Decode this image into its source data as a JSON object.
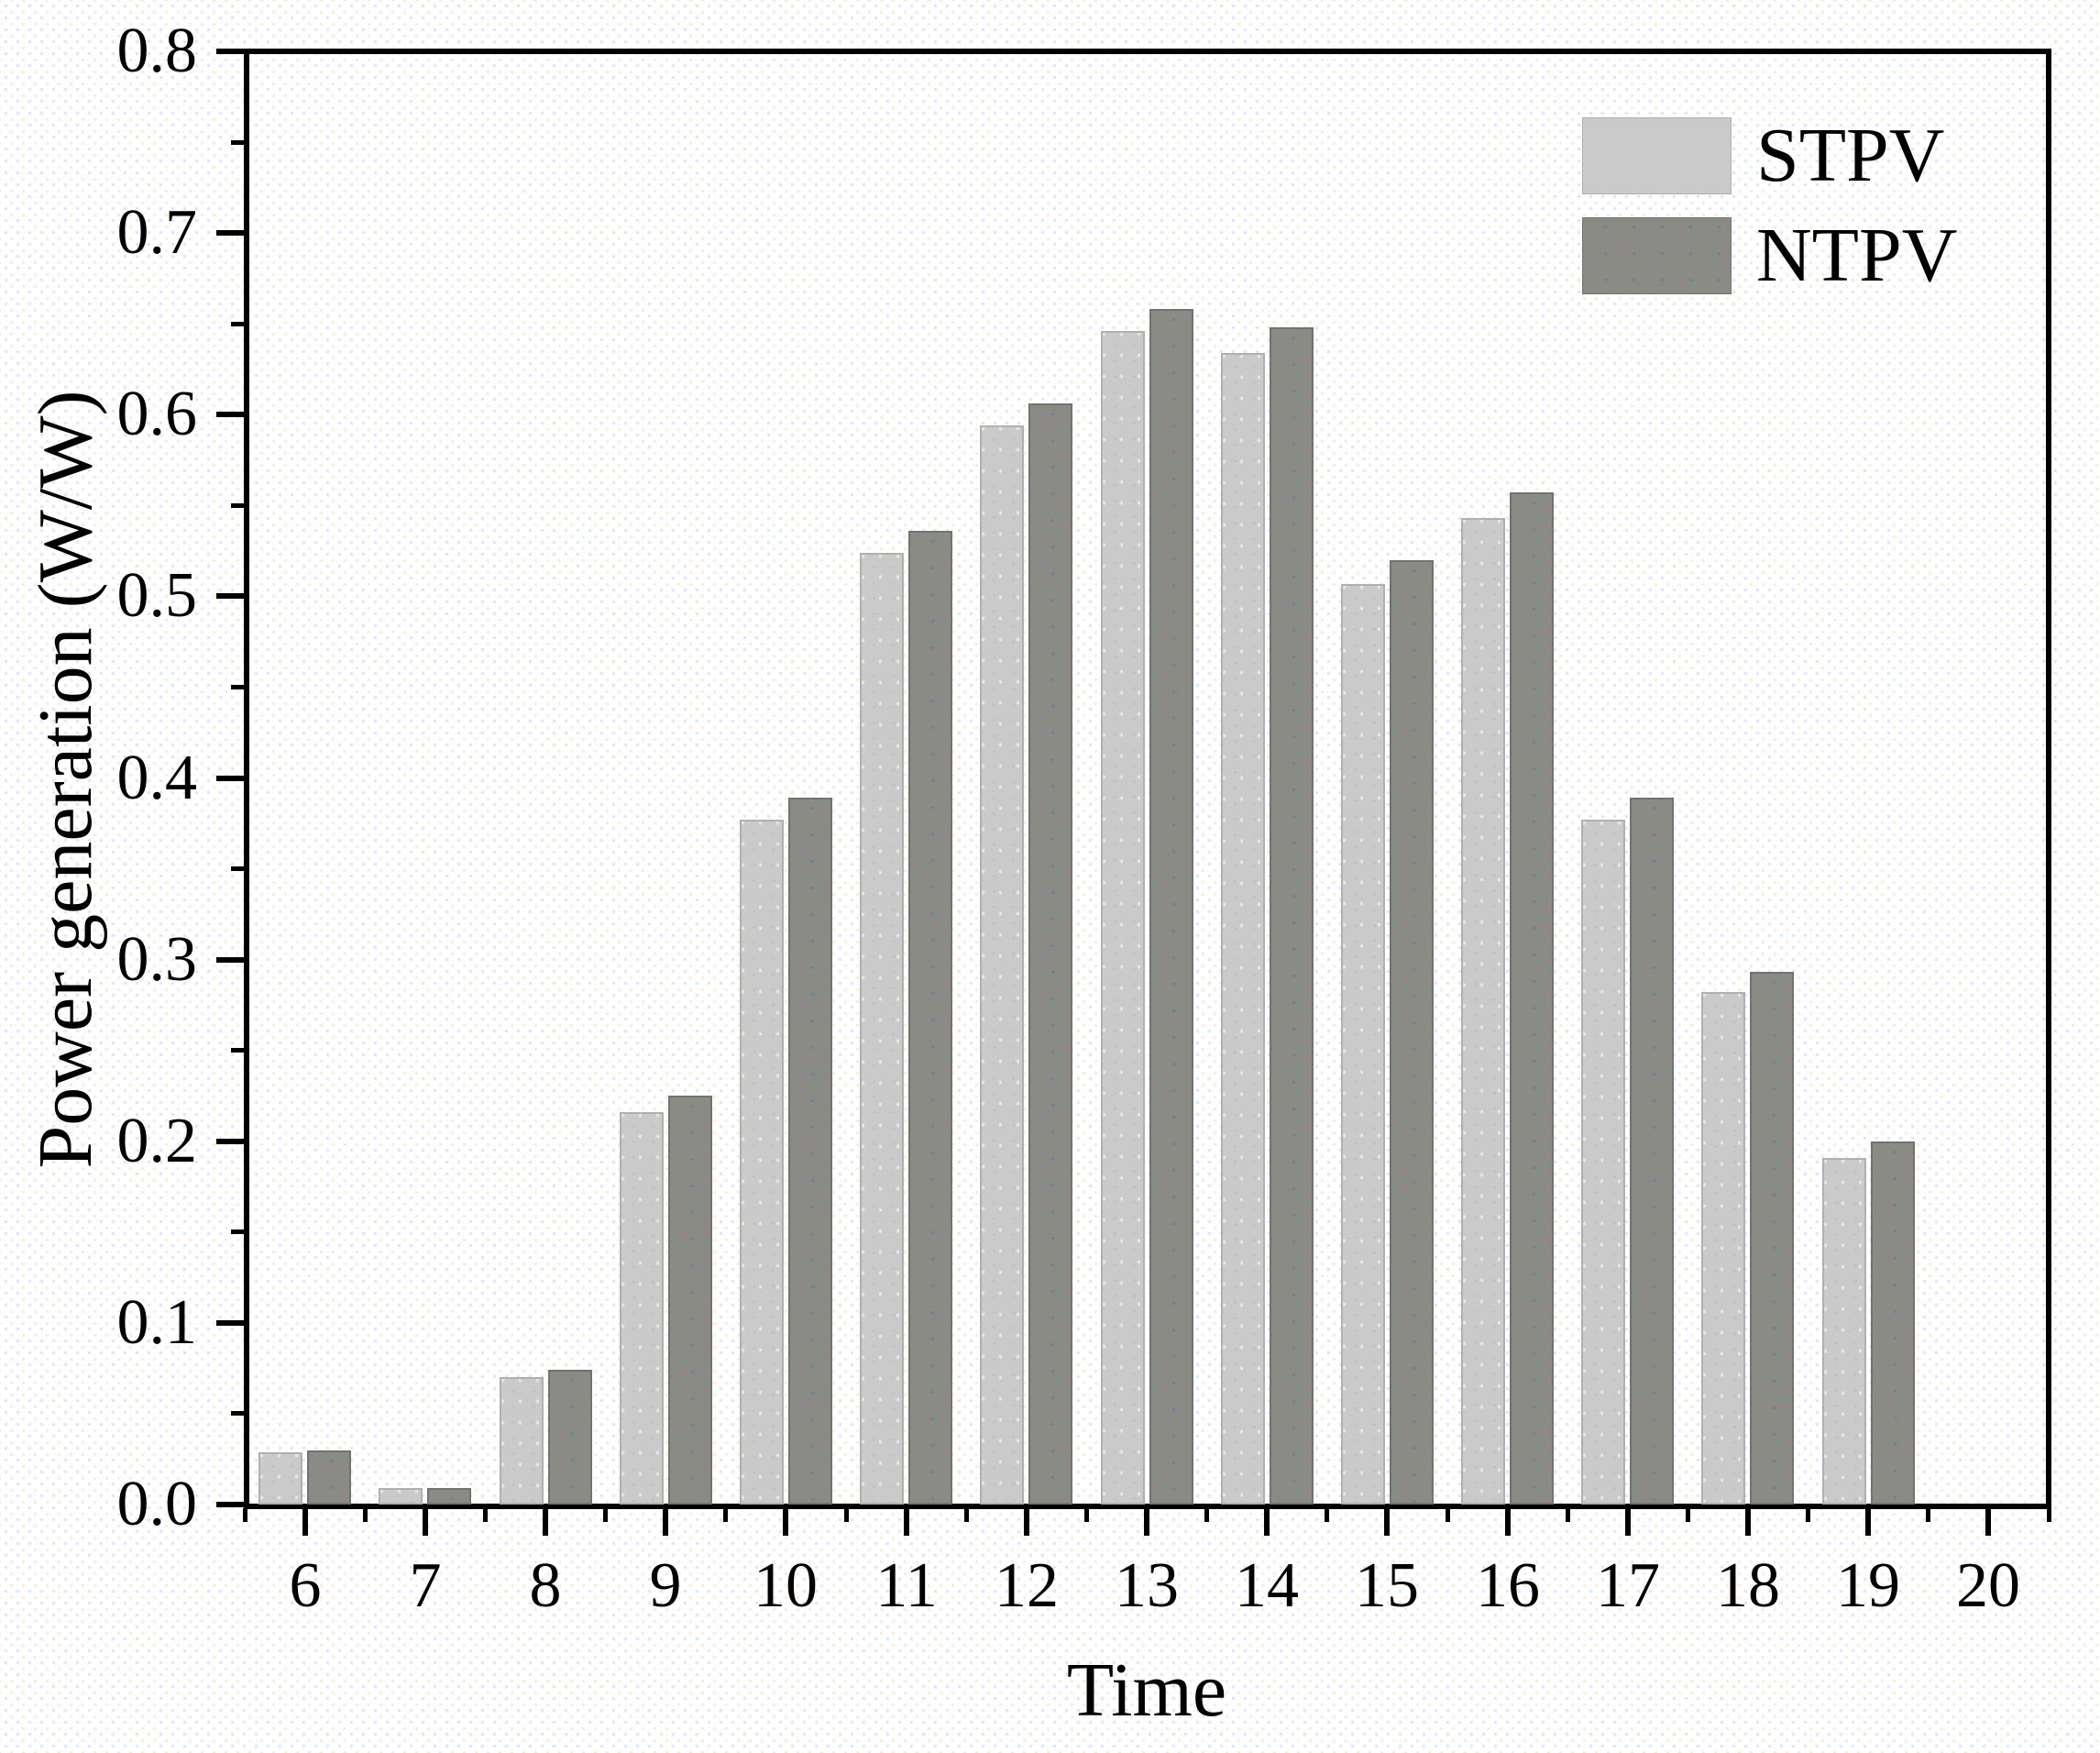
{
  "chart_data": {
    "type": "bar",
    "title": "",
    "xlabel": "Time",
    "ylabel": "Power generation (W/W)",
    "categories": [
      6,
      7,
      8,
      9,
      10,
      11,
      12,
      13,
      14,
      15,
      16,
      17,
      18,
      19,
      20
    ],
    "series": [
      {
        "name": "STPV",
        "color": "#cacaca",
        "edge_color": "#b0b0ad",
        "values": [
          0.029,
          0.009,
          0.07,
          0.216,
          0.377,
          0.524,
          0.594,
          0.646,
          0.634,
          0.507,
          0.543,
          0.377,
          0.282,
          0.191,
          0
        ]
      },
      {
        "name": "NTPV",
        "color": "#8b8b86",
        "edge_color": "#73736d",
        "values": [
          0.03,
          0.009,
          0.074,
          0.225,
          0.389,
          0.536,
          0.606,
          0.658,
          0.648,
          0.52,
          0.557,
          0.389,
          0.293,
          0.2,
          0
        ]
      }
    ],
    "xlim": [
      5.5,
      20.5
    ],
    "ylim": [
      0,
      0.8
    ],
    "x_tick_labels": [
      "6",
      "7",
      "8",
      "9",
      "10",
      "11",
      "12",
      "13",
      "14",
      "15",
      "16",
      "17",
      "18",
      "19",
      "20"
    ],
    "y_tick_labels": [
      "0.0",
      "0.1",
      "0.2",
      "0.3",
      "0.4",
      "0.5",
      "0.6",
      "0.7",
      "0.8"
    ],
    "y_minor_step": 0.05,
    "x_minor_step": 0.5,
    "grid": false,
    "legend_position": "top-right",
    "frame_color": "#000000"
  }
}
